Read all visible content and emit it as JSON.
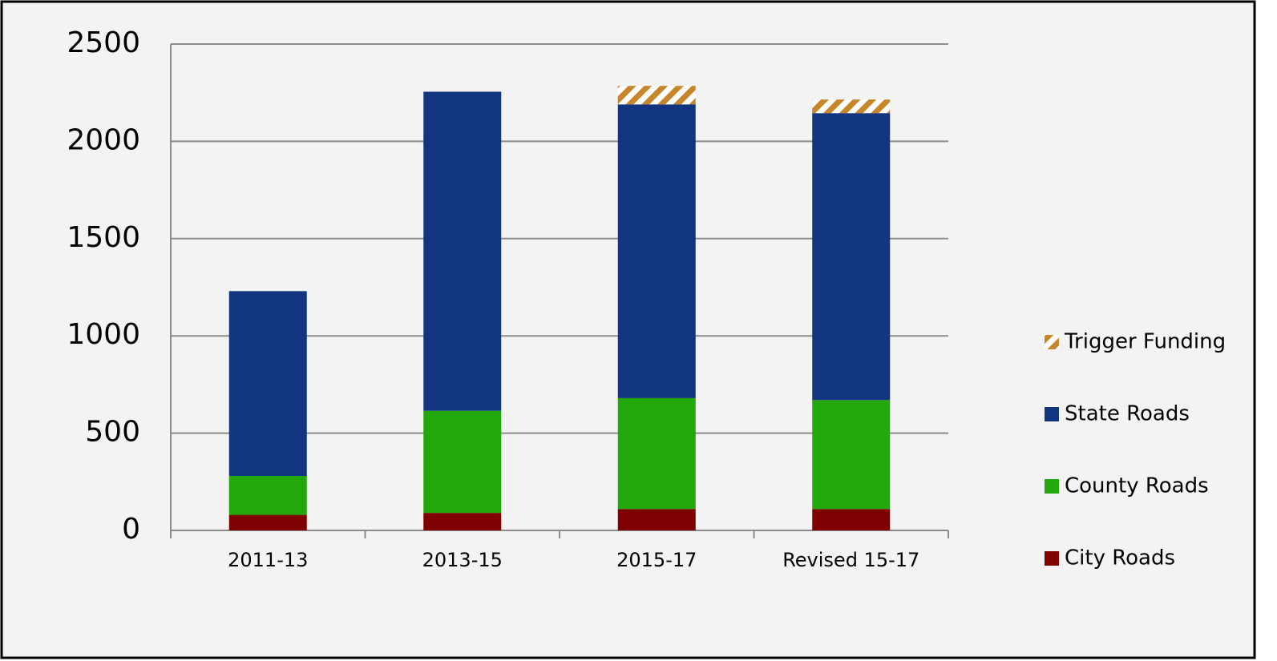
{
  "chart_data": {
    "type": "stacked_bar",
    "categories": [
      "2011-13",
      "2013-15",
      "2015-17",
      "Revised 15-17"
    ],
    "series": [
      {
        "name": "City Roads",
        "color": "#7f0000",
        "values": [
          80,
          90,
          110,
          110
        ]
      },
      {
        "name": "County Roads",
        "color": "#22a80a",
        "values": [
          200,
          525,
          570,
          560
        ]
      },
      {
        "name": "State Roads",
        "color": "#12357f",
        "values": [
          950,
          1640,
          1510,
          1475
        ]
      },
      {
        "name": "Trigger Funding",
        "color": "#c8862a",
        "hatch": true,
        "values": [
          0,
          0,
          95,
          70
        ]
      }
    ],
    "ylim": [
      0,
      2500
    ],
    "yticks": [
      0,
      500,
      1000,
      1500,
      2000,
      2500
    ],
    "grid": true,
    "legend": "right"
  }
}
